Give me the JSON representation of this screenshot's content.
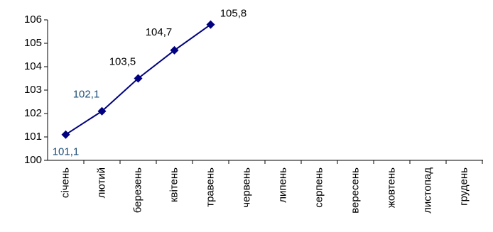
{
  "chart_data": {
    "type": "line",
    "categories": [
      "січень",
      "лютий",
      "березень",
      "квітень",
      "травень",
      "червень",
      "липень",
      "серпень",
      "вересень",
      "жовтень",
      "листопад",
      "грудень"
    ],
    "series": [
      {
        "color": "#000080",
        "values": [
          101.1,
          102.1,
          103.5,
          104.7,
          105.8,
          null,
          null,
          null,
          null,
          null,
          null,
          null
        ],
        "value_labels": [
          "101,1",
          "102,1",
          "103,5",
          "104,7",
          "105,8",
          null,
          null,
          null,
          null,
          null,
          null,
          null
        ],
        "value_label_colors": [
          "#1f4e79",
          "#1f4e79",
          "#000000",
          "#000000",
          "#000000",
          null,
          null,
          null,
          null,
          null,
          null,
          null
        ]
      }
    ],
    "ylim": [
      100,
      106
    ],
    "yticks": [
      100,
      101,
      102,
      103,
      104,
      105,
      106
    ],
    "grid": false
  }
}
